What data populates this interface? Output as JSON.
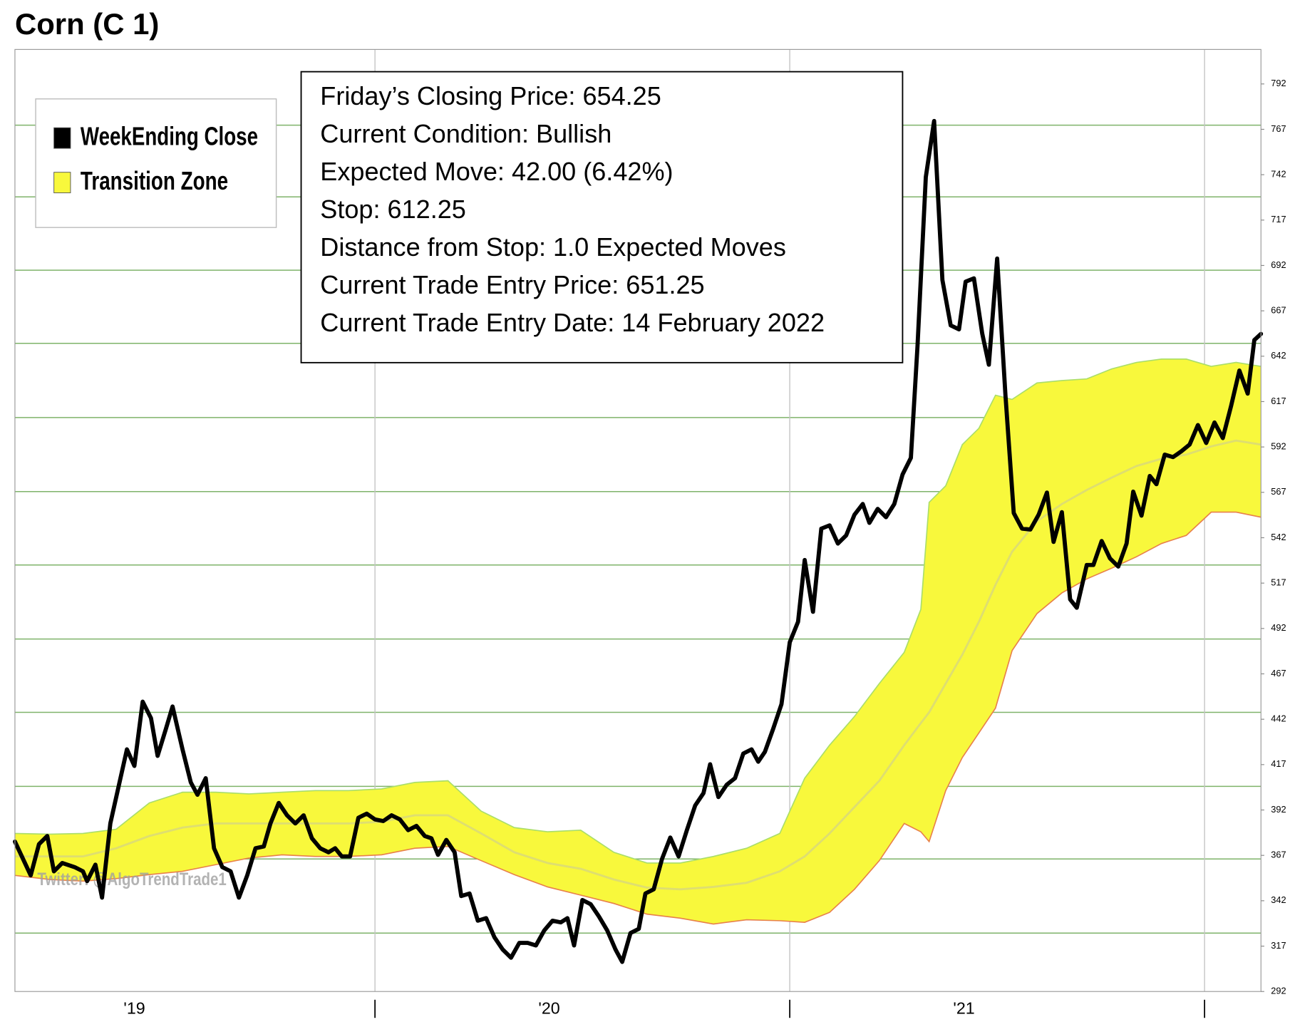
{
  "chart_data": {
    "type": "line",
    "title": "Corn (C 1)",
    "watermark": "Twitter: @AlgoTrendTrade1",
    "info_lines": [
      "Friday’s Closing Price: 654.25",
      "Current Condition: Bullish",
      "Expected Move: 42.00 (6.42%)",
      "Stop: 612.25",
      "Distance from Stop: 1.0 Expected Moves",
      "Current Trade Entry Price: 651.25",
      "Current Trade Entry Date: 14 February 2022"
    ],
    "legend": "upper left",
    "xlim": [
      2019.132,
      2022.136
    ],
    "xticks": [
      {
        "value": 2019.42,
        "label": "'19"
      },
      {
        "value": 2020.42,
        "label": "'20"
      },
      {
        "value": 2021.42,
        "label": "'21"
      }
    ],
    "xgrid": [
      2020,
      2021,
      2022
    ],
    "ylim": [
      292,
      811
    ],
    "yticks": [
      292,
      317,
      342,
      367,
      392,
      417,
      442,
      467,
      492,
      517,
      542,
      567,
      592,
      617,
      642,
      667,
      692,
      717,
      742,
      767,
      792
    ],
    "ygrid": [
      324.2,
      365.0,
      405.0,
      445.8,
      486.2,
      527.0,
      567.4,
      608.2,
      649.1,
      689.4,
      729.8,
      769.3
    ],
    "grid": true,
    "series": [
      {
        "name": "WeekEnding Close",
        "color": "#000000",
        "x": [
          2019.132,
          2019.17,
          2019.19,
          2019.21,
          2019.226,
          2019.246,
          2019.276,
          2019.296,
          2019.306,
          2019.326,
          2019.342,
          2019.362,
          2019.382,
          2019.402,
          2019.42,
          2019.44,
          2019.46,
          2019.476,
          2019.496,
          2019.512,
          2019.536,
          2019.556,
          2019.572,
          2019.592,
          2019.612,
          2019.632,
          2019.652,
          2019.672,
          2019.692,
          2019.712,
          2019.732,
          2019.748,
          2019.768,
          2019.788,
          2019.808,
          2019.828,
          2019.848,
          2019.868,
          2019.888,
          2019.904,
          2019.92,
          2019.94,
          2019.96,
          2019.98,
          2020.0,
          2020.02,
          2020.04,
          2020.06,
          2020.08,
          2020.1,
          2020.12,
          2020.136,
          2020.152,
          2020.172,
          2020.192,
          2020.208,
          2020.228,
          2020.248,
          2020.268,
          2020.288,
          2020.308,
          2020.328,
          2020.348,
          2020.368,
          2020.388,
          2020.408,
          2020.428,
          2020.448,
          2020.464,
          2020.48,
          2020.5,
          2020.52,
          2020.54,
          2020.56,
          2020.58,
          2020.596,
          2020.616,
          2020.636,
          2020.652,
          2020.672,
          2020.692,
          2020.712,
          2020.732,
          2020.752,
          2020.772,
          2020.792,
          2020.808,
          2020.828,
          2020.848,
          2020.868,
          2020.888,
          2020.908,
          2020.924,
          2020.94,
          2020.96,
          2020.98,
          2021.0,
          2021.02,
          2021.036,
          2021.056,
          2021.076,
          2021.096,
          2021.116,
          2021.136,
          2021.156,
          2021.176,
          2021.192,
          2021.212,
          2021.232,
          2021.252,
          2021.272,
          2021.292,
          2021.308,
          2021.328,
          2021.348,
          2021.368,
          2021.388,
          2021.408,
          2021.424,
          2021.444,
          2021.464,
          2021.48,
          2021.5,
          2021.52,
          2021.54,
          2021.56,
          2021.58,
          2021.6,
          2021.62,
          2021.636,
          2021.656,
          2021.676,
          2021.692,
          2021.716,
          2021.732,
          2021.752,
          2021.772,
          2021.792,
          2021.812,
          2021.828,
          2021.848,
          2021.868,
          2021.884,
          2021.904,
          2021.924,
          2021.944,
          2021.964,
          2021.984,
          2022.004,
          2022.024,
          2022.044,
          2022.064,
          2022.084,
          2022.104,
          2022.12,
          2022.136
        ],
        "values": [
          374.6,
          356.0,
          373.2,
          377.7,
          358.2,
          362.8,
          360.5,
          358.2,
          352.8,
          361.9,
          343.7,
          384.6,
          405.0,
          425.4,
          416.3,
          451.7,
          442.6,
          421.8,
          436.7,
          449.0,
          425.4,
          407.2,
          400.4,
          409.5,
          370.9,
          360.5,
          358.2,
          343.7,
          356.0,
          370.9,
          371.9,
          384.6,
          395.9,
          389.1,
          384.6,
          389.1,
          376.4,
          370.9,
          368.7,
          370.9,
          366.4,
          366.4,
          387.7,
          390.0,
          386.8,
          385.9,
          389.1,
          386.8,
          380.9,
          383.2,
          377.7,
          376.4,
          367.3,
          375.5,
          368.7,
          344.6,
          346.0,
          331.0,
          332.4,
          321.9,
          315.1,
          310.6,
          318.8,
          318.8,
          317.4,
          325.6,
          331.0,
          330.1,
          332.4,
          317.4,
          342.4,
          340.1,
          333.3,
          325.6,
          315.1,
          308.3,
          324.2,
          326.5,
          346.0,
          348.3,
          365.0,
          376.8,
          366.4,
          380.9,
          394.5,
          401.3,
          417.2,
          399.1,
          405.9,
          409.5,
          423.1,
          425.4,
          418.6,
          424.0,
          436.7,
          450.3,
          484.4,
          495.7,
          529.7,
          501.2,
          547.0,
          548.8,
          538.8,
          543.3,
          554.7,
          560.6,
          550.2,
          557.9,
          553.3,
          560.6,
          576.9,
          586.0,
          647.7,
          740.7,
          771.6,
          684.0,
          659.0,
          656.8,
          683.1,
          684.9,
          654.5,
          637.3,
          695.8,
          620.5,
          555.6,
          547.0,
          546.5,
          554.7,
          566.9,
          539.7,
          556.1,
          508.0,
          503.4,
          527.0,
          527.0,
          540.2,
          530.6,
          526.1,
          538.8,
          567.4,
          554.2,
          576.0,
          571.5,
          587.8,
          586.4,
          589.6,
          593.3,
          604.1,
          594.2,
          605.5,
          596.9,
          614.6,
          634.1,
          621.4,
          650.9,
          654.3
        ]
      },
      {
        "name": "Transition Zone",
        "color": "#f8f83c",
        "upper_color": "#a9dd6a",
        "lower_color": "#e8804a",
        "mid_color": "#dede70",
        "x": [
          2019.132,
          2019.216,
          2019.296,
          2019.376,
          2019.456,
          2019.536,
          2019.616,
          2019.696,
          2019.776,
          2019.856,
          2019.936,
          2020.016,
          2020.096,
          2020.176,
          2020.256,
          2020.336,
          2020.416,
          2020.496,
          2020.576,
          2020.656,
          2020.736,
          2020.816,
          2020.896,
          2020.976,
          2021.036,
          2021.096,
          2021.156,
          2021.216,
          2021.276,
          2021.316,
          2021.336,
          2021.376,
          2021.416,
          2021.456,
          2021.496,
          2021.536,
          2021.596,
          2021.656,
          2021.716,
          2021.776,
          2021.836,
          2021.896,
          2021.956,
          2022.016,
          2022.076,
          2022.136
        ],
        "upper": [
          379.1,
          378.7,
          379.1,
          381.4,
          395.9,
          401.8,
          401.8,
          400.9,
          401.8,
          402.7,
          402.7,
          403.6,
          407.2,
          408.1,
          391.4,
          382.3,
          380.0,
          380.9,
          368.7,
          362.8,
          362.8,
          366.4,
          370.9,
          379.1,
          409.5,
          427.7,
          443.5,
          461.7,
          478.9,
          502.5,
          561.5,
          570.6,
          593.3,
          602.3,
          620.5,
          618.2,
          627.3,
          628.6,
          629.5,
          635.0,
          638.6,
          640.4,
          640.4,
          636.4,
          638.6,
          636.4
        ],
        "lower": [
          356.0,
          353.7,
          352.8,
          354.2,
          356.4,
          358.2,
          361.9,
          365.5,
          367.3,
          366.4,
          366.4,
          367.3,
          370.9,
          371.9,
          364.1,
          356.4,
          349.6,
          345.1,
          340.5,
          334.6,
          332.4,
          329.2,
          331.5,
          331.0,
          330.1,
          335.6,
          348.3,
          364.1,
          384.6,
          380.0,
          374.6,
          402.7,
          420.9,
          434.5,
          448.1,
          479.8,
          500.2,
          511.6,
          519.3,
          525.2,
          531.5,
          538.8,
          543.3,
          556.1,
          556.1,
          553.3
        ],
        "mid": [
          366.4,
          366.4,
          366.4,
          370.9,
          377.7,
          382.3,
          384.6,
          384.6,
          384.6,
          384.6,
          384.6,
          385.5,
          389.1,
          389.1,
          379.1,
          368.7,
          362.8,
          359.6,
          353.7,
          349.2,
          348.3,
          349.6,
          351.9,
          358.2,
          366.4,
          379.1,
          393.6,
          408.1,
          427.7,
          439.9,
          445.8,
          461.7,
          477.6,
          495.7,
          516.1,
          534.3,
          551.1,
          560.6,
          568.3,
          575.1,
          581.5,
          585.5,
          587.8,
          592.3,
          595.5,
          593.3
        ]
      }
    ]
  }
}
